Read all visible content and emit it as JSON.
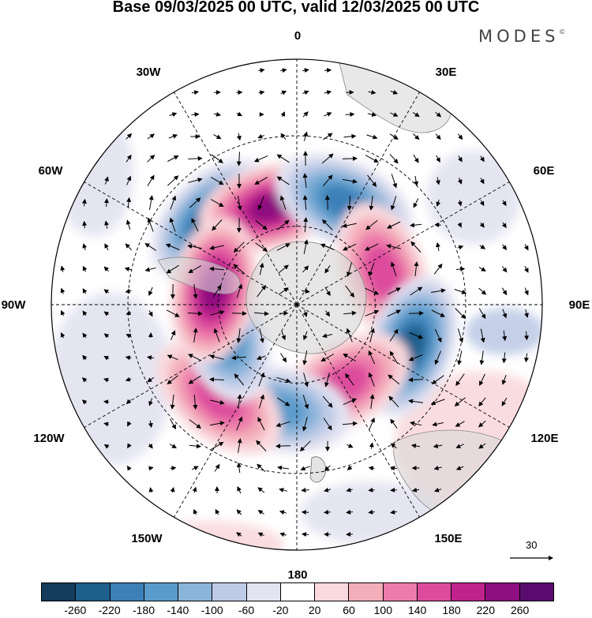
{
  "title": "Base 09/03/2025 00 UTC, valid 12/03/2025 00 UTC",
  "brand": "MODES",
  "brand_mark": "©",
  "map": {
    "projection": "south-polar-stereographic",
    "longitude_labels": {
      "lon_0": "0",
      "lon_30e": "30E",
      "lon_60e": "60E",
      "lon_90e": "90E",
      "lon_120e": "120E",
      "lon_150e": "150E",
      "lon_180": "180",
      "lon_150w": "150W",
      "lon_120w": "120W",
      "lon_90w": "90W",
      "lon_60w": "60W",
      "lon_30w": "30W"
    },
    "anomaly_centers": [
      {
        "name": "negative",
        "lon": -45,
        "lat": -45,
        "value": -260
      },
      {
        "name": "positive",
        "lon": -15,
        "lat": -52,
        "value": 240
      },
      {
        "name": "negative",
        "lon": 25,
        "lat": -48,
        "value": -200
      },
      {
        "name": "positive",
        "lon": 70,
        "lat": -55,
        "value": 180
      },
      {
        "name": "negative",
        "lon": 110,
        "lat": -45,
        "value": -260
      },
      {
        "name": "positive",
        "lon": 150,
        "lat": -55,
        "value": 160
      },
      {
        "name": "negative",
        "lon": -170,
        "lat": -50,
        "value": -160
      },
      {
        "name": "positive",
        "lon": -140,
        "lat": -45,
        "value": 180
      },
      {
        "name": "negative",
        "lon": -110,
        "lat": -60,
        "value": -200
      },
      {
        "name": "positive",
        "lon": -80,
        "lat": -58,
        "value": 260
      }
    ]
  },
  "reference_vector": {
    "value": "30"
  },
  "colorbar": {
    "labels": [
      "-260",
      "-220",
      "-180",
      "-140",
      "-100",
      "-60",
      "-20",
      "20",
      "60",
      "100",
      "140",
      "180",
      "220",
      "260"
    ],
    "colors": [
      "#153c5c",
      "#1f5f8c",
      "#3b80b7",
      "#5b9bcb",
      "#8bb4da",
      "#bfcbe6",
      "#e3e3f1",
      "#ffffff",
      "#f9d9dd",
      "#f4aeba",
      "#ec7cab",
      "#dd4c9c",
      "#c0228d",
      "#8e0f7f",
      "#5a0b6e"
    ]
  }
}
